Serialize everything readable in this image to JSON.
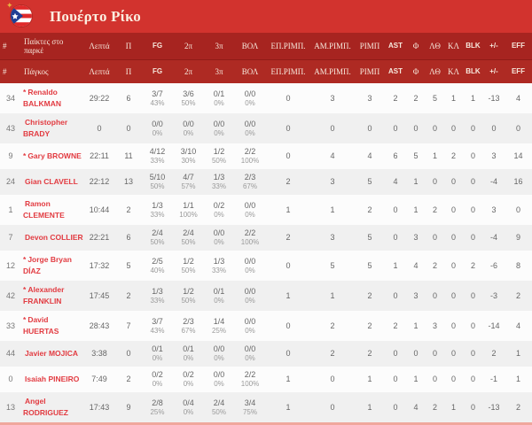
{
  "team": {
    "name": "Πουέρτο Ρίκο",
    "flag_icon": "puerto-rico-flag-icon"
  },
  "colors": {
    "banner_red": "#d2332e",
    "header_red_dark": "#a72420",
    "header_red": "#ae2a23",
    "player_name_red": "#e23b41",
    "row_alt_gray": "#f0f0f0",
    "bottom_strip_pink": "#f0a79d"
  },
  "sections": {
    "hash": "#",
    "starters_label": "Παίκτες στο παρκέ",
    "bench_label": "Πάγκος"
  },
  "columns": [
    {
      "key": "min",
      "label": "Λεπτά",
      "latin": false
    },
    {
      "key": "pts",
      "label": "Π",
      "latin": false
    },
    {
      "key": "fg",
      "label": "FG",
      "latin": true
    },
    {
      "key": "p2",
      "label": "2π",
      "latin": false
    },
    {
      "key": "p3",
      "label": "3π",
      "latin": false
    },
    {
      "key": "ft",
      "label": "ΒΟΛ",
      "latin": false
    },
    {
      "key": "oreb",
      "label": "ΕΠ.ΡΙΜΠ.",
      "latin": false
    },
    {
      "key": "dreb",
      "label": "ΑΜ.ΡΙΜΠ.",
      "latin": false
    },
    {
      "key": "reb",
      "label": "ΡΙΜΠ",
      "latin": false
    },
    {
      "key": "ast",
      "label": "AST",
      "latin": true
    },
    {
      "key": "f",
      "label": "Φ",
      "latin": false
    },
    {
      "key": "to",
      "label": "ΛΘ",
      "latin": false
    },
    {
      "key": "stl",
      "label": "ΚΛ",
      "latin": false
    },
    {
      "key": "blk",
      "label": "BLK",
      "latin": true
    },
    {
      "key": "pm",
      "label": "+/-",
      "latin": true
    },
    {
      "key": "eff",
      "label": "EFF",
      "latin": true
    }
  ],
  "players": [
    {
      "number": "34",
      "star": "*",
      "name": "Renaldo BALKMAN",
      "min": "29:22",
      "pts": "6",
      "fg": "3/7",
      "fg_pct": "43%",
      "p2": "3/6",
      "p2_pct": "50%",
      "p3": "0/1",
      "p3_pct": "0%",
      "ft": "0/0",
      "ft_pct": "0%",
      "oreb": "0",
      "dreb": "3",
      "reb": "3",
      "ast": "2",
      "f": "2",
      "to": "5",
      "stl": "1",
      "blk": "1",
      "pm": "-13",
      "eff": "4"
    },
    {
      "number": "43",
      "star": "",
      "name": "Christopher BRADY",
      "min": "0",
      "pts": "0",
      "fg": "0/0",
      "fg_pct": "0%",
      "p2": "0/0",
      "p2_pct": "0%",
      "p3": "0/0",
      "p3_pct": "0%",
      "ft": "0/0",
      "ft_pct": "0%",
      "oreb": "0",
      "dreb": "0",
      "reb": "0",
      "ast": "0",
      "f": "0",
      "to": "0",
      "stl": "0",
      "blk": "0",
      "pm": "0",
      "eff": "0"
    },
    {
      "number": "9",
      "star": "*",
      "name": "Gary BROWNE",
      "min": "22:11",
      "pts": "11",
      "fg": "4/12",
      "fg_pct": "33%",
      "p2": "3/10",
      "p2_pct": "30%",
      "p3": "1/2",
      "p3_pct": "50%",
      "ft": "2/2",
      "ft_pct": "100%",
      "oreb": "0",
      "dreb": "4",
      "reb": "4",
      "ast": "6",
      "f": "5",
      "to": "1",
      "stl": "2",
      "blk": "0",
      "pm": "3",
      "eff": "14"
    },
    {
      "number": "24",
      "star": "",
      "name": "Gian CLAVELL",
      "min": "22:12",
      "pts": "13",
      "fg": "5/10",
      "fg_pct": "50%",
      "p2": "4/7",
      "p2_pct": "57%",
      "p3": "1/3",
      "p3_pct": "33%",
      "ft": "2/3",
      "ft_pct": "67%",
      "oreb": "2",
      "dreb": "3",
      "reb": "5",
      "ast": "4",
      "f": "1",
      "to": "0",
      "stl": "0",
      "blk": "0",
      "pm": "-4",
      "eff": "16"
    },
    {
      "number": "1",
      "star": "",
      "name": "Ramon CLEMENTE",
      "min": "10:44",
      "pts": "2",
      "fg": "1/3",
      "fg_pct": "33%",
      "p2": "1/1",
      "p2_pct": "100%",
      "p3": "0/2",
      "p3_pct": "0%",
      "ft": "0/0",
      "ft_pct": "0%",
      "oreb": "1",
      "dreb": "1",
      "reb": "2",
      "ast": "0",
      "f": "1",
      "to": "2",
      "stl": "0",
      "blk": "0",
      "pm": "3",
      "eff": "0"
    },
    {
      "number": "7",
      "star": "",
      "name": "Devon COLLIER",
      "min": "22:21",
      "pts": "6",
      "fg": "2/4",
      "fg_pct": "50%",
      "p2": "2/4",
      "p2_pct": "50%",
      "p3": "0/0",
      "p3_pct": "0%",
      "ft": "2/2",
      "ft_pct": "100%",
      "oreb": "2",
      "dreb": "3",
      "reb": "5",
      "ast": "0",
      "f": "3",
      "to": "0",
      "stl": "0",
      "blk": "0",
      "pm": "-4",
      "eff": "9"
    },
    {
      "number": "12",
      "star": "*",
      "name": "Jorge Bryan DÍAZ",
      "min": "17:32",
      "pts": "5",
      "fg": "2/5",
      "fg_pct": "40%",
      "p2": "1/2",
      "p2_pct": "50%",
      "p3": "1/3",
      "p3_pct": "33%",
      "ft": "0/0",
      "ft_pct": "0%",
      "oreb": "0",
      "dreb": "5",
      "reb": "5",
      "ast": "1",
      "f": "4",
      "to": "2",
      "stl": "0",
      "blk": "2",
      "pm": "-6",
      "eff": "8"
    },
    {
      "number": "42",
      "star": "*",
      "name": "Alexander FRANKLIN",
      "min": "17:45",
      "pts": "2",
      "fg": "1/3",
      "fg_pct": "33%",
      "p2": "1/2",
      "p2_pct": "50%",
      "p3": "0/1",
      "p3_pct": "0%",
      "ft": "0/0",
      "ft_pct": "0%",
      "oreb": "1",
      "dreb": "1",
      "reb": "2",
      "ast": "0",
      "f": "3",
      "to": "0",
      "stl": "0",
      "blk": "0",
      "pm": "-3",
      "eff": "2"
    },
    {
      "number": "33",
      "star": "*",
      "name": "David HUERTAS",
      "min": "28:43",
      "pts": "7",
      "fg": "3/7",
      "fg_pct": "43%",
      "p2": "2/3",
      "p2_pct": "67%",
      "p3": "1/4",
      "p3_pct": "25%",
      "ft": "0/0",
      "ft_pct": "0%",
      "oreb": "0",
      "dreb": "2",
      "reb": "2",
      "ast": "2",
      "f": "1",
      "to": "3",
      "stl": "0",
      "blk": "0",
      "pm": "-14",
      "eff": "4"
    },
    {
      "number": "44",
      "star": "",
      "name": "Javier MOJICA",
      "min": "3:38",
      "pts": "0",
      "fg": "0/1",
      "fg_pct": "0%",
      "p2": "0/1",
      "p2_pct": "0%",
      "p3": "0/0",
      "p3_pct": "0%",
      "ft": "0/0",
      "ft_pct": "0%",
      "oreb": "0",
      "dreb": "2",
      "reb": "2",
      "ast": "0",
      "f": "0",
      "to": "0",
      "stl": "0",
      "blk": "0",
      "pm": "2",
      "eff": "1"
    },
    {
      "number": "0",
      "star": "",
      "name": "Isaiah PINEIRO",
      "min": "7:49",
      "pts": "2",
      "fg": "0/2",
      "fg_pct": "0%",
      "p2": "0/2",
      "p2_pct": "0%",
      "p3": "0/0",
      "p3_pct": "0%",
      "ft": "2/2",
      "ft_pct": "100%",
      "oreb": "1",
      "dreb": "0",
      "reb": "1",
      "ast": "0",
      "f": "1",
      "to": "0",
      "stl": "0",
      "blk": "0",
      "pm": "-1",
      "eff": "1"
    },
    {
      "number": "13",
      "star": "",
      "name": "Angel RODRIGUEZ",
      "min": "17:43",
      "pts": "9",
      "fg": "2/8",
      "fg_pct": "25%",
      "p2": "0/4",
      "p2_pct": "0%",
      "p3": "2/4",
      "p3_pct": "50%",
      "ft": "3/4",
      "ft_pct": "75%",
      "oreb": "1",
      "dreb": "0",
      "reb": "1",
      "ast": "0",
      "f": "4",
      "to": "2",
      "stl": "1",
      "blk": "0",
      "pm": "-13",
      "eff": "2"
    }
  ]
}
